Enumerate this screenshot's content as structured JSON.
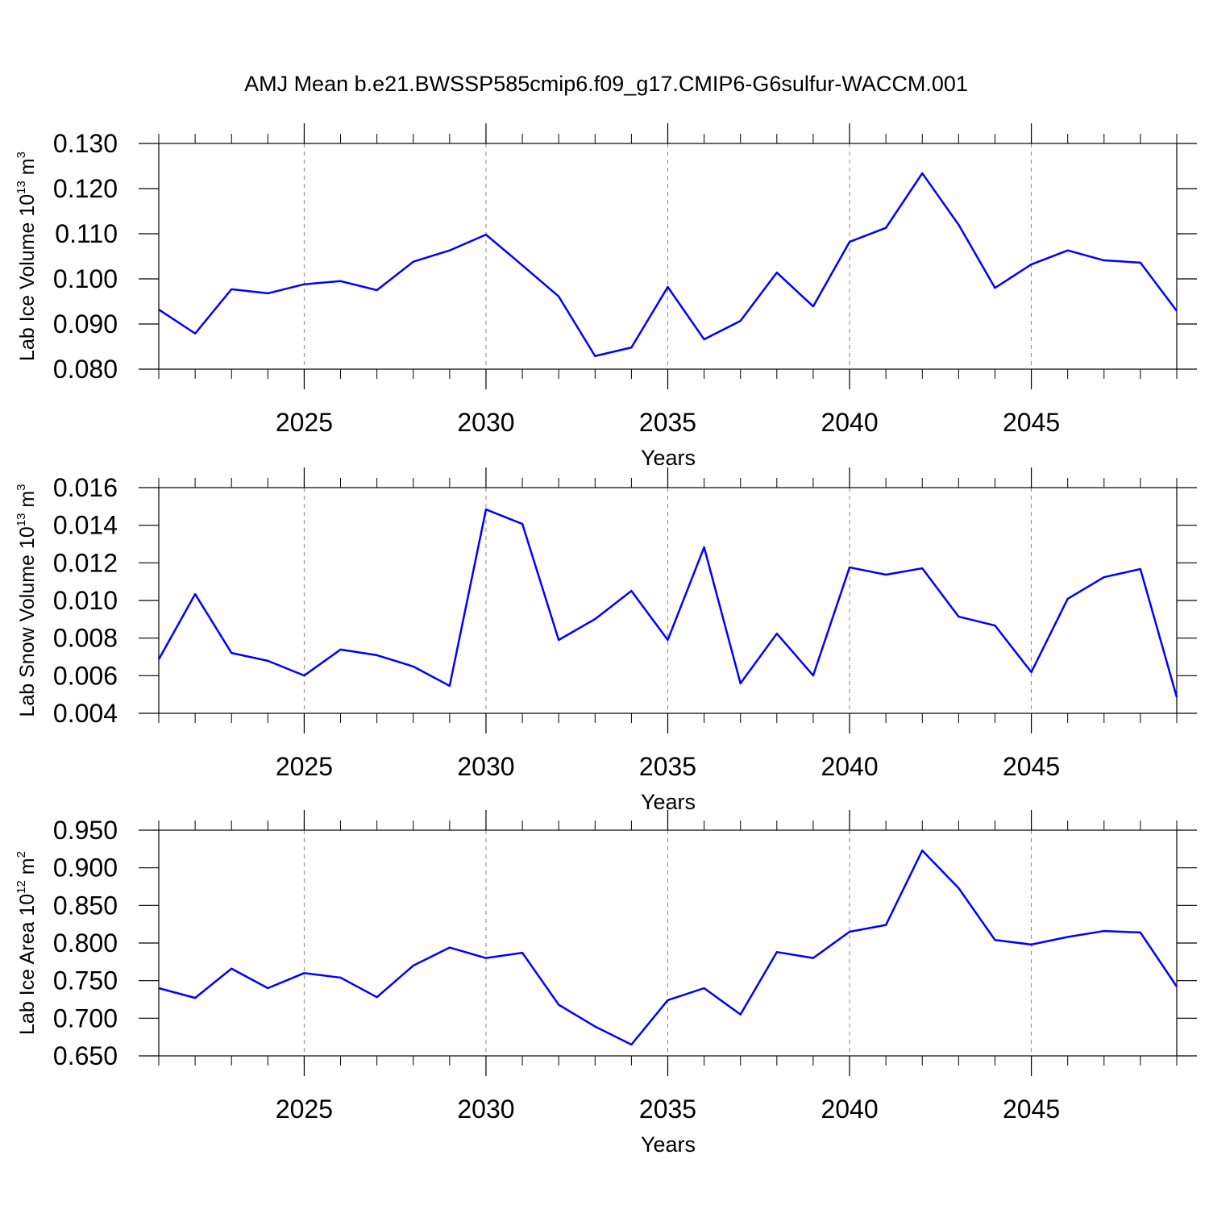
{
  "title": "AMJ Mean b.e21.BWSSP585cmip6.f09_g17.CMIP6-G6sulfur-WACCM.001",
  "chart_data": [
    {
      "type": "line",
      "xlabel": "Years",
      "ylabel": [
        "Lab Ice Volume 10",
        "13",
        " m",
        "3"
      ],
      "x": [
        2021,
        2022,
        2023,
        2024,
        2025,
        2026,
        2027,
        2028,
        2029,
        2030,
        2031,
        2032,
        2033,
        2034,
        2035,
        2036,
        2037,
        2038,
        2039,
        2040,
        2041,
        2042,
        2043,
        2044,
        2045,
        2046,
        2047,
        2048,
        2049
      ],
      "values": [
        0.0932,
        0.0879,
        0.0977,
        0.0968,
        0.0988,
        0.0995,
        0.0975,
        0.1038,
        0.1063,
        0.1098,
        0.103,
        0.0961,
        0.0829,
        0.0848,
        0.0982,
        0.0866,
        0.0907,
        0.1014,
        0.0939,
        0.1082,
        0.1113,
        0.1234,
        0.112,
        0.098,
        0.1032,
        0.1063,
        0.1041,
        0.1036,
        0.0929
      ],
      "color": "#0000ff",
      "xgrid": true,
      "xlim": [
        2021,
        2049
      ],
      "xticks": [
        2025,
        2030,
        2035,
        2040,
        2045
      ],
      "ylim": [
        0.08,
        0.13
      ],
      "yticks": [
        {
          "value": 0.08,
          "label": "0.080"
        },
        {
          "value": 0.09,
          "label": "0.090"
        },
        {
          "value": 0.1,
          "label": "0.100"
        },
        {
          "value": 0.11,
          "label": "0.110"
        },
        {
          "value": 0.12,
          "label": "0.120"
        },
        {
          "value": 0.13,
          "label": "0.130"
        }
      ]
    },
    {
      "type": "line",
      "xlabel": "Years",
      "ylabel": [
        "Lab Snow Volume 10",
        "13",
        " m",
        "3"
      ],
      "x": [
        2021,
        2022,
        2023,
        2024,
        2025,
        2026,
        2027,
        2028,
        2029,
        2030,
        2031,
        2032,
        2033,
        2034,
        2035,
        2036,
        2037,
        2038,
        2039,
        2040,
        2041,
        2042,
        2043,
        2044,
        2045,
        2046,
        2047,
        2048,
        2049
      ],
      "values": [
        0.00687,
        0.01034,
        0.00721,
        0.00679,
        0.00601,
        0.00739,
        0.00709,
        0.00649,
        0.00546,
        0.01484,
        0.01407,
        0.0079,
        0.00901,
        0.01051,
        0.0079,
        0.01283,
        0.00559,
        0.00824,
        0.00601,
        0.01176,
        0.01137,
        0.01171,
        0.00914,
        0.00867,
        0.00619,
        0.01009,
        0.01124,
        0.01167,
        0.00486
      ],
      "color": "#0000ff",
      "xgrid": true,
      "xlim": [
        2021,
        2049
      ],
      "xticks": [
        2025,
        2030,
        2035,
        2040,
        2045
      ],
      "ylim": [
        0.004,
        0.016
      ],
      "yticks": [
        0.004,
        0.006,
        0.008,
        {
          "value": 0.01,
          "label": "0.010"
        },
        0.012,
        0.014,
        0.016
      ]
    },
    {
      "type": "line",
      "xlabel": "Years",
      "ylabel": [
        "Lab Ice Area 10",
        "12",
        " m",
        "2"
      ],
      "x": [
        2021,
        2022,
        2023,
        2024,
        2025,
        2026,
        2027,
        2028,
        2029,
        2030,
        2031,
        2032,
        2033,
        2034,
        2035,
        2036,
        2037,
        2038,
        2039,
        2040,
        2041,
        2042,
        2043,
        2044,
        2045,
        2046,
        2047,
        2048,
        2049
      ],
      "values": [
        0.74,
        0.727,
        0.766,
        0.74,
        0.76,
        0.754,
        0.728,
        0.77,
        0.794,
        0.78,
        0.787,
        0.718,
        0.689,
        0.665,
        0.724,
        0.74,
        0.705,
        0.788,
        0.78,
        0.815,
        0.824,
        0.923,
        0.873,
        0.804,
        0.798,
        0.808,
        0.816,
        0.814,
        0.742
      ],
      "color": "#0000ff",
      "xgrid": true,
      "xlim": [
        2021,
        2049
      ],
      "xticks": [
        2025,
        2030,
        2035,
        2040,
        2045
      ],
      "ylim": [
        0.65,
        0.95
      ],
      "yticks": [
        {
          "value": 0.65,
          "label": "0.650"
        },
        {
          "value": 0.7,
          "label": "0.700"
        },
        {
          "value": 0.75,
          "label": "0.750"
        },
        {
          "value": 0.8,
          "label": "0.800"
        },
        {
          "value": 0.85,
          "label": "0.850"
        },
        {
          "value": 0.9,
          "label": "0.900"
        },
        {
          "value": 0.95,
          "label": "0.950"
        }
      ]
    }
  ]
}
